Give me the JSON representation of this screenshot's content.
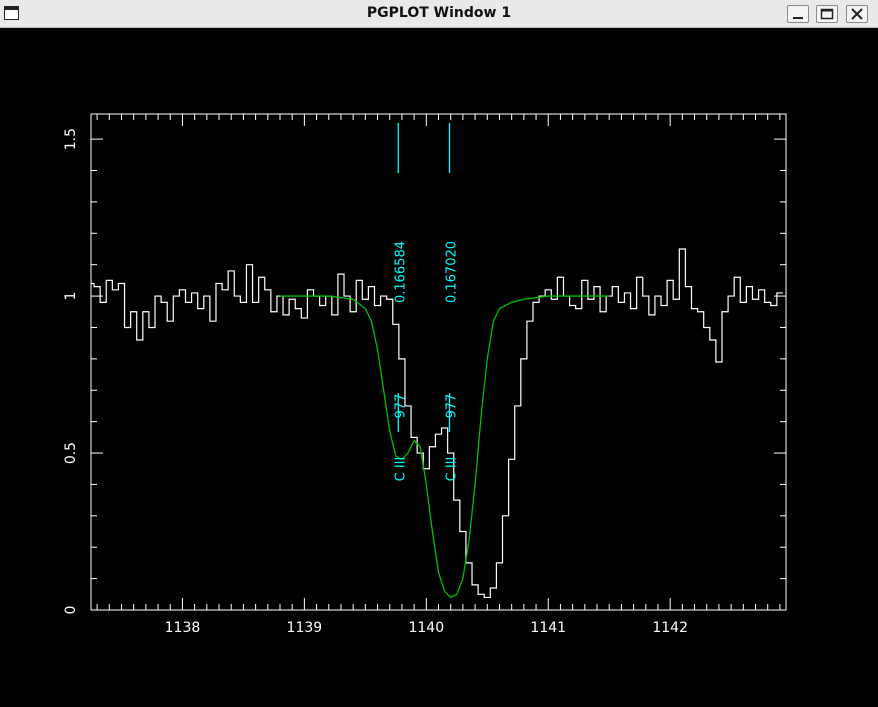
{
  "window": {
    "title": "PGPLOT Window 1"
  },
  "controls": {
    "minimize_icon": "minimize-icon",
    "maximize_icon": "maximize-icon",
    "close_icon": "close-icon"
  },
  "colors": {
    "background": "#000000",
    "axes": "#ffffff",
    "spectrum": "#ffffff",
    "fit": "#00c000",
    "annotation": "#00ffff"
  },
  "chart_data": {
    "type": "line",
    "xlim": [
      1137.25,
      1142.95
    ],
    "ylim": [
      0,
      1.58
    ],
    "xticks": [
      1138,
      1139,
      1140,
      1141,
      1142
    ],
    "yticks": [
      0,
      0.5,
      1,
      1.5
    ],
    "xtick_labels": [
      "1138",
      "1139",
      "1140",
      "1141",
      "1142"
    ],
    "ytick_labels": [
      "0",
      "0.5",
      "1",
      "1.5"
    ],
    "series": [
      {
        "kind": "step",
        "color": "#ffffff",
        "x": [
          1137.25,
          1137.3,
          1137.35,
          1137.4,
          1137.45,
          1137.5,
          1137.55,
          1137.6,
          1137.65,
          1137.7,
          1137.75,
          1137.8,
          1137.85,
          1137.9,
          1137.95,
          1138.0,
          1138.05,
          1138.1,
          1138.15,
          1138.2,
          1138.25,
          1138.3,
          1138.35,
          1138.4,
          1138.45,
          1138.5,
          1138.55,
          1138.6,
          1138.65,
          1138.7,
          1138.75,
          1138.8,
          1138.85,
          1138.9,
          1138.95,
          1139.0,
          1139.05,
          1139.1,
          1139.15,
          1139.2,
          1139.25,
          1139.3,
          1139.35,
          1139.4,
          1139.45,
          1139.5,
          1139.55,
          1139.6,
          1139.65,
          1139.7,
          1139.75,
          1139.8,
          1139.85,
          1139.9,
          1139.95,
          1140.0,
          1140.05,
          1140.1,
          1140.15,
          1140.2,
          1140.25,
          1140.3,
          1140.35,
          1140.4,
          1140.45,
          1140.5,
          1140.55,
          1140.6,
          1140.65,
          1140.7,
          1140.75,
          1140.8,
          1140.85,
          1140.9,
          1140.95,
          1141.0,
          1141.05,
          1141.1,
          1141.15,
          1141.2,
          1141.25,
          1141.3,
          1141.35,
          1141.4,
          1141.45,
          1141.5,
          1141.55,
          1141.6,
          1141.65,
          1141.7,
          1141.75,
          1141.8,
          1141.85,
          1141.9,
          1141.95,
          1142.0,
          1142.05,
          1142.1,
          1142.15,
          1142.2,
          1142.25,
          1142.3,
          1142.35,
          1142.4,
          1142.45,
          1142.5,
          1142.55,
          1142.6,
          1142.65,
          1142.7,
          1142.75,
          1142.8,
          1142.85,
          1142.9
        ],
        "y": [
          1.04,
          1.03,
          0.98,
          1.05,
          1.02,
          1.04,
          0.9,
          0.95,
          0.86,
          0.95,
          0.9,
          1.0,
          0.98,
          0.92,
          1.0,
          1.02,
          0.98,
          1.01,
          0.96,
          1.0,
          0.92,
          1.04,
          1.02,
          1.08,
          1.0,
          0.98,
          1.1,
          0.98,
          1.06,
          1.02,
          0.95,
          1.0,
          0.94,
          0.99,
          0.96,
          0.93,
          1.02,
          1.0,
          0.97,
          1.0,
          0.94,
          1.07,
          1.0,
          0.95,
          1.05,
          0.99,
          1.03,
          0.97,
          1.0,
          0.99,
          0.91,
          0.8,
          0.65,
          0.55,
          0.5,
          0.45,
          0.52,
          0.56,
          0.58,
          0.5,
          0.35,
          0.25,
          0.15,
          0.08,
          0.05,
          0.04,
          0.07,
          0.15,
          0.3,
          0.48,
          0.65,
          0.8,
          0.92,
          0.98,
          1.0,
          1.02,
          0.99,
          1.06,
          1.0,
          0.97,
          0.96,
          1.05,
          0.99,
          1.03,
          0.95,
          1.0,
          1.03,
          0.98,
          1.01,
          0.96,
          1.06,
          1.0,
          0.94,
          1.0,
          0.97,
          1.05,
          0.99,
          1.15,
          1.03,
          0.96,
          0.95,
          0.9,
          0.86,
          0.79,
          0.95,
          1.0,
          1.06,
          0.98,
          1.03,
          0.99,
          1.02,
          0.98,
          0.97,
          1.01
        ]
      },
      {
        "kind": "line",
        "color": "#00c000",
        "x": [
          1138.8,
          1139.2,
          1139.4,
          1139.5,
          1139.55,
          1139.6,
          1139.65,
          1139.7,
          1139.75,
          1139.8,
          1139.85,
          1139.9,
          1139.95,
          1140.0,
          1140.05,
          1140.1,
          1140.15,
          1140.2,
          1140.25,
          1140.3,
          1140.35,
          1140.4,
          1140.45,
          1140.5,
          1140.55,
          1140.6,
          1140.7,
          1140.8,
          1141.0,
          1141.2,
          1141.4,
          1141.5
        ],
        "y": [
          1.0,
          1.0,
          0.99,
          0.96,
          0.92,
          0.83,
          0.7,
          0.57,
          0.49,
          0.48,
          0.5,
          0.54,
          0.52,
          0.4,
          0.25,
          0.12,
          0.06,
          0.04,
          0.05,
          0.1,
          0.22,
          0.4,
          0.62,
          0.8,
          0.92,
          0.96,
          0.98,
          0.99,
          1.0,
          1.0,
          1.0,
          1.0
        ]
      }
    ],
    "annotations": [
      {
        "x": 1139.77,
        "label_element": "C III",
        "label_wavelength": "977",
        "label_redshift": "0.166584"
      },
      {
        "x": 1140.19,
        "label_element": "C III",
        "label_wavelength": "977",
        "label_redshift": "0.167020"
      }
    ]
  }
}
